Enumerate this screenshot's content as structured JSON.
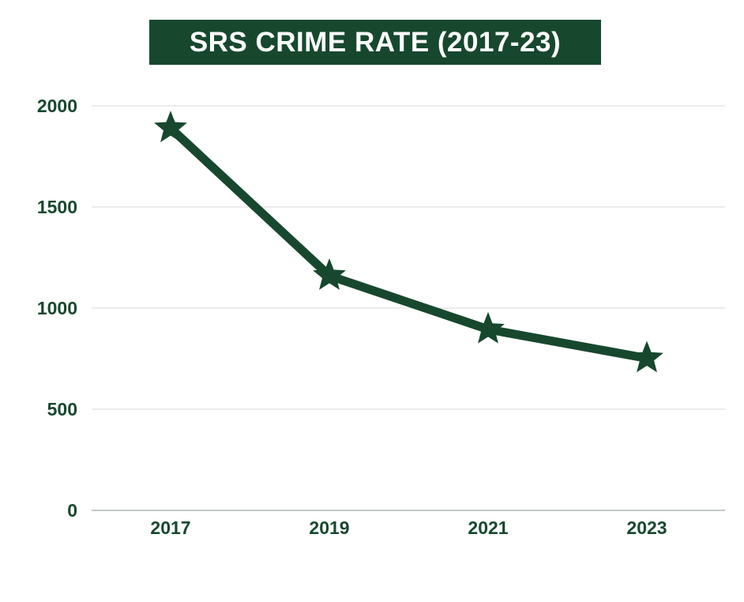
{
  "chart_data": {
    "type": "line",
    "title": "SRS CRIME RATE (2017-23)",
    "xlabel": "",
    "ylabel": "",
    "categories": [
      "2017",
      "2019",
      "2021",
      "2023"
    ],
    "series": [
      {
        "values": [
          1890,
          1160,
          895,
          752
        ]
      }
    ],
    "ylim": [
      0,
      2000
    ],
    "yticks": [
      0,
      500,
      1000,
      1500,
      2000
    ],
    "ytick_labels": [
      "0",
      "500",
      "1000",
      "1500",
      "2000"
    ],
    "grid": true,
    "legend": "none",
    "marker": "star",
    "colors": {
      "line": "#17482e",
      "title_background": "#17482e",
      "title_text": "#ffffff",
      "tick_text": "#17482e",
      "grid": "#d9d9d9",
      "axis": "#9aa8a0"
    }
  }
}
